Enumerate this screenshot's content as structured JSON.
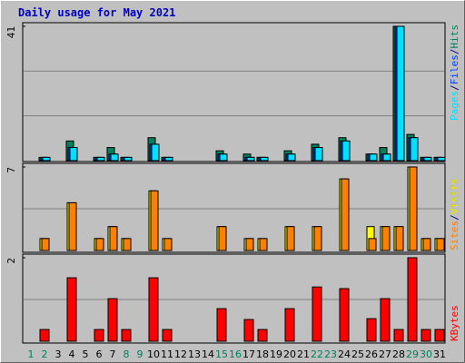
{
  "title": "Daily usage for May 2021",
  "legend_separator": "/",
  "label_colors": [
    "#00805c",
    "#00805c",
    "#000000",
    "#000000",
    "#000000",
    "#000000",
    "#000000",
    "#00805c",
    "#00805c",
    "#000000",
    "#000000",
    "#000000",
    "#000000",
    "#000000",
    "#00805c",
    "#00805c",
    "#000000",
    "#000000",
    "#000000",
    "#000000",
    "#000000",
    "#00805c",
    "#00805c",
    "#000000",
    "#000000",
    "#000000",
    "#000000",
    "#000000",
    "#00805c",
    "#00805c",
    "#000000"
  ],
  "chart_data": [
    {
      "type": "bar",
      "ylim": [
        0,
        41
      ],
      "yticks": [
        41
      ],
      "series": [
        {
          "name": "Hits",
          "color": "#00805c",
          "values": [
            0,
            1,
            0,
            6,
            0,
            1,
            4,
            1,
            0,
            7,
            1,
            0,
            0,
            0,
            3,
            0,
            2,
            1,
            0,
            3,
            0,
            5,
            0,
            7,
            0,
            2,
            4,
            41,
            8,
            1,
            1
          ]
        },
        {
          "name": "Files",
          "color": "#0040ff",
          "values": [
            0,
            1,
            0,
            4,
            0,
            1,
            2,
            1,
            0,
            5,
            1,
            0,
            0,
            0,
            2,
            0,
            1,
            1,
            0,
            2,
            0,
            4,
            0,
            6,
            0,
            2,
            2,
            41,
            7,
            1,
            1
          ]
        },
        {
          "name": "Pages",
          "color": "#00e0ff",
          "values": [
            0,
            1,
            0,
            4,
            0,
            1,
            2,
            1,
            0,
            5,
            1,
            0,
            0,
            0,
            2,
            0,
            1,
            1,
            0,
            2,
            0,
            4,
            0,
            6,
            0,
            2,
            2,
            41,
            7,
            1,
            1
          ]
        }
      ]
    },
    {
      "type": "bar",
      "ylim": [
        0,
        7
      ],
      "yticks": [
        7
      ],
      "series": [
        {
          "name": "Visits",
          "color": "#ffff00",
          "values": [
            0,
            1,
            0,
            4,
            0,
            1,
            2,
            1,
            0,
            5,
            1,
            0,
            0,
            0,
            2,
            0,
            1,
            1,
            0,
            2,
            0,
            2,
            0,
            6,
            0,
            2,
            2,
            2,
            7,
            1,
            1
          ]
        },
        {
          "name": "Sites",
          "color": "#ff8000",
          "values": [
            0,
            1,
            0,
            4,
            0,
            1,
            2,
            1,
            0,
            5,
            1,
            0,
            0,
            0,
            2,
            0,
            1,
            1,
            0,
            2,
            0,
            2,
            0,
            6,
            0,
            1,
            2,
            2,
            7,
            1,
            1
          ]
        }
      ]
    },
    {
      "type": "bar",
      "ylim": [
        0,
        2
      ],
      "yticks": [
        2
      ],
      "categories": [
        "1",
        "2",
        "3",
        "4",
        "5",
        "6",
        "7",
        "8",
        "9",
        "10",
        "11",
        "12",
        "13",
        "14",
        "15",
        "16",
        "17",
        "18",
        "19",
        "20",
        "21",
        "22",
        "23",
        "24",
        "25",
        "26",
        "27",
        "28",
        "29",
        "30",
        "31"
      ],
      "series": [
        {
          "name": "KBytes",
          "color": "#ff0000",
          "values": [
            0,
            0.28,
            0,
            1.52,
            0,
            0.28,
            1.02,
            0.28,
            0,
            1.52,
            0.28,
            0,
            0,
            0,
            0.78,
            0,
            0.52,
            0.28,
            0,
            0.78,
            0,
            1.3,
            0,
            1.26,
            0,
            0.54,
            1.02,
            0.28,
            2,
            0.28,
            0.28
          ]
        }
      ]
    }
  ]
}
